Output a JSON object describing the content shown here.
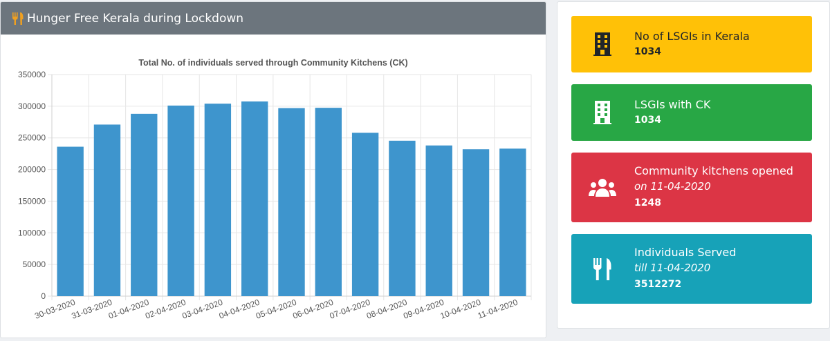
{
  "panel": {
    "title": "Hunger Free Kerala during Lockdown",
    "icon": "utensils-icon"
  },
  "chart_data": {
    "type": "bar",
    "title": "Total No. of individuals served through Community Kitchens (CK)",
    "xlabel": "",
    "ylabel": "",
    "categories": [
      "30-03-2020",
      "31-03-2020",
      "01-04-2020",
      "02-04-2020",
      "03-04-2020",
      "04-04-2020",
      "05-04-2020",
      "06-04-2020",
      "07-04-2020",
      "08-04-2020",
      "09-04-2020",
      "10-04-2020",
      "11-04-2020"
    ],
    "values": [
      236000,
      271000,
      288000,
      301000,
      304000,
      307500,
      297000,
      297500,
      258000,
      245500,
      238000,
      232000,
      233000
    ],
    "ylim": [
      0,
      350000
    ],
    "yticks": [
      "0",
      "50000",
      "100000",
      "150000",
      "200000",
      "250000",
      "300000",
      "350000"
    ],
    "bar_color": "#3e95cd",
    "grid": true
  },
  "stats": [
    {
      "icon": "building-icon",
      "title": "No of LSGIs in Kerala",
      "sub": "",
      "value": "1034",
      "color": "#ffc107"
    },
    {
      "icon": "office-building-icon",
      "title": "LSGIs with CK",
      "sub": "",
      "value": "1034",
      "color": "#28a745"
    },
    {
      "icon": "users-icon",
      "title": "Community kitchens opened",
      "sub": "on 11-04-2020",
      "value": "1248",
      "color": "#dc3545"
    },
    {
      "icon": "utensils-icon",
      "title": "Individuals Served",
      "sub": "till 11-04-2020",
      "value": "3512272",
      "color": "#17a2b8"
    }
  ]
}
